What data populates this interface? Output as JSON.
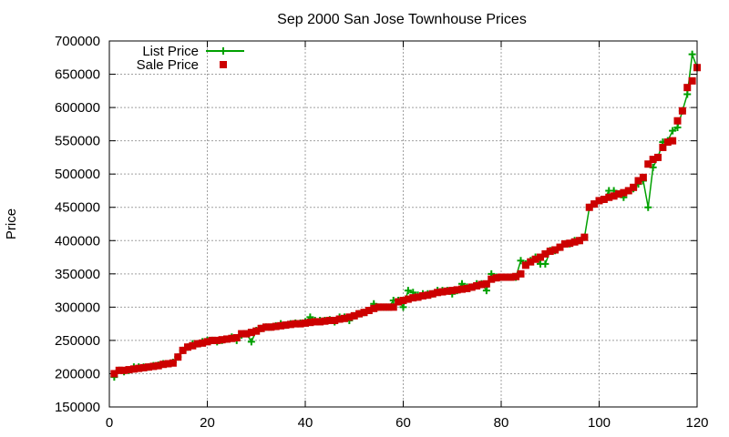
{
  "chart_data": {
    "type": "line",
    "title": "Sep 2000 San Jose Townhouse Prices",
    "xlabel": "",
    "ylabel": "Price",
    "xlim": [
      0,
      120
    ],
    "ylim": [
      150000,
      700000
    ],
    "xticks": [
      "0",
      "20",
      "40",
      "60",
      "80",
      "100",
      "120"
    ],
    "yticks": [
      "150000",
      "200000",
      "250000",
      "300000",
      "350000",
      "400000",
      "450000",
      "500000",
      "550000",
      "600000",
      "650000",
      "700000"
    ],
    "grid": true,
    "legend_position": "top-left",
    "series": [
      {
        "name": "List Price",
        "style": "lines+points",
        "marker": "plus",
        "color": "#00a000",
        "x": [
          1,
          2,
          3,
          4,
          5,
          6,
          7,
          8,
          9,
          10,
          11,
          12,
          13,
          14,
          15,
          16,
          17,
          18,
          19,
          20,
          21,
          22,
          23,
          24,
          25,
          26,
          27,
          28,
          29,
          30,
          31,
          32,
          33,
          34,
          35,
          36,
          37,
          38,
          39,
          40,
          41,
          42,
          43,
          44,
          45,
          46,
          47,
          48,
          49,
          50,
          51,
          52,
          53,
          54,
          55,
          56,
          57,
          58,
          59,
          60,
          61,
          62,
          63,
          64,
          65,
          66,
          67,
          68,
          69,
          70,
          71,
          72,
          73,
          74,
          75,
          76,
          77,
          78,
          79,
          80,
          81,
          82,
          83,
          84,
          85,
          86,
          87,
          88,
          89,
          90,
          91,
          92,
          93,
          94,
          95,
          96,
          97,
          98,
          99,
          100,
          101,
          102,
          103,
          104,
          105,
          106,
          107,
          108,
          109,
          110,
          111,
          112,
          113,
          114,
          115,
          116,
          117,
          118,
          119,
          120
        ],
        "values": [
          195000,
          205000,
          203000,
          205000,
          210000,
          210000,
          210000,
          210000,
          212000,
          213000,
          215000,
          215000,
          217000,
          225000,
          235000,
          240000,
          245000,
          245000,
          248000,
          250000,
          250000,
          248000,
          250000,
          252000,
          255000,
          250000,
          258000,
          260000,
          248000,
          265000,
          268000,
          270000,
          270000,
          272000,
          275000,
          273000,
          275000,
          276000,
          276000,
          278000,
          285000,
          280000,
          280000,
          280000,
          281000,
          278000,
          285000,
          285000,
          280000,
          287000,
          290000,
          292000,
          295000,
          305000,
          300000,
          300000,
          300000,
          310000,
          310000,
          300000,
          325000,
          322000,
          318000,
          320000,
          320000,
          320000,
          325000,
          325000,
          325000,
          320000,
          325000,
          335000,
          330000,
          330000,
          335000,
          335000,
          325000,
          350000,
          345000,
          345000,
          345000,
          345000,
          345000,
          370000,
          365000,
          370000,
          375000,
          365000,
          365000,
          385000,
          385000,
          390000,
          395000,
          395000,
          400000,
          400000,
          405000,
          450000,
          455000,
          460000,
          462000,
          475000,
          475000,
          470000,
          465000,
          475000,
          478000,
          485000,
          490000,
          450000,
          510000,
          525000,
          548000,
          550000,
          565000,
          570000,
          595000,
          620000,
          680000,
          660000
        ]
      },
      {
        "name": "Sale Price",
        "style": "points",
        "marker": "square",
        "color": "#cc0000",
        "x": [
          1,
          2,
          3,
          4,
          5,
          6,
          7,
          8,
          9,
          10,
          11,
          12,
          13,
          14,
          15,
          16,
          17,
          18,
          19,
          20,
          21,
          22,
          23,
          24,
          25,
          26,
          27,
          28,
          29,
          30,
          31,
          32,
          33,
          34,
          35,
          36,
          37,
          38,
          39,
          40,
          41,
          42,
          43,
          44,
          45,
          46,
          47,
          48,
          49,
          50,
          51,
          52,
          53,
          54,
          55,
          56,
          57,
          58,
          59,
          60,
          61,
          62,
          63,
          64,
          65,
          66,
          67,
          68,
          69,
          70,
          71,
          72,
          73,
          74,
          75,
          76,
          77,
          78,
          79,
          80,
          81,
          82,
          83,
          84,
          85,
          86,
          87,
          88,
          89,
          90,
          91,
          92,
          93,
          94,
          95,
          96,
          97,
          98,
          99,
          100,
          101,
          102,
          103,
          104,
          105,
          106,
          107,
          108,
          109,
          110,
          111,
          112,
          113,
          114,
          115,
          116,
          117,
          118,
          119,
          120
        ],
        "values": [
          200000,
          205000,
          205000,
          206000,
          207000,
          208000,
          209000,
          210000,
          211000,
          212000,
          214000,
          215000,
          216000,
          225000,
          235000,
          240000,
          242000,
          245000,
          246000,
          248000,
          250000,
          250000,
          251000,
          252000,
          253000,
          254000,
          260000,
          260000,
          262000,
          264000,
          268000,
          270000,
          270000,
          271000,
          272000,
          273000,
          274000,
          275000,
          275000,
          276000,
          277000,
          278000,
          278000,
          279000,
          280000,
          280000,
          282000,
          283000,
          285000,
          287000,
          290000,
          292000,
          295000,
          298000,
          300000,
          300000,
          300000,
          300000,
          308000,
          310000,
          312000,
          314000,
          315000,
          317000,
          318000,
          320000,
          322000,
          323000,
          324000,
          325000,
          326000,
          327000,
          328000,
          330000,
          332000,
          334000,
          335000,
          342000,
          344000,
          345000,
          345000,
          345000,
          346000,
          350000,
          363000,
          368000,
          372000,
          375000,
          380000,
          384000,
          386000,
          390000,
          395000,
          396000,
          398000,
          400000,
          405000,
          450000,
          455000,
          460000,
          462000,
          465000,
          467000,
          470000,
          472000,
          475000,
          480000,
          490000,
          495000,
          515000,
          522000,
          525000,
          540000,
          548000,
          550000,
          580000,
          595000,
          630000,
          640000,
          660000
        ]
      }
    ]
  }
}
